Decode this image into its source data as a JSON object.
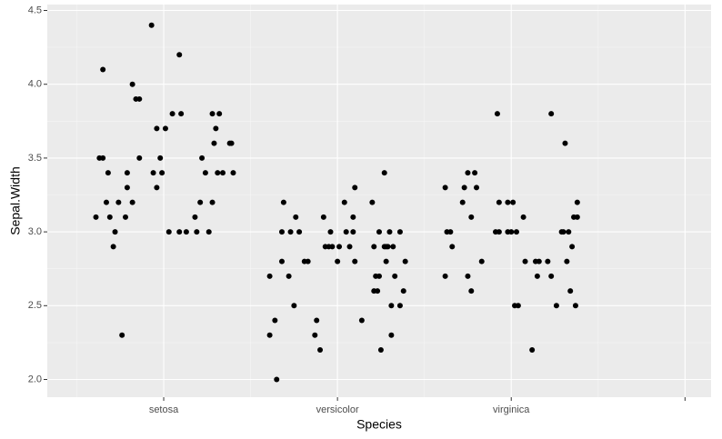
{
  "chart_data": {
    "type": "scatter",
    "x_label": "Species",
    "y_label": "Sepal.Width",
    "xlim": [
      0.33,
      4.15
    ],
    "ylim": [
      1.88,
      4.54
    ],
    "xticks": [
      {
        "value": 1,
        "label": "setosa"
      },
      {
        "value": 2,
        "label": "versicolor"
      },
      {
        "value": 3,
        "label": "virginica"
      },
      {
        "value": 4,
        "label": null
      }
    ],
    "yticks": [
      {
        "value": 2,
        "label": "2.0"
      },
      2.5,
      {
        "value": 3,
        "label": "3.0"
      },
      3.5,
      {
        "value": 4,
        "label": "4.0"
      },
      4.5
    ],
    "grid": true,
    "color": "#000000",
    "x": [
      0.61,
      0.65,
      0.63,
      0.65,
      0.67,
      0.68,
      0.69,
      0.71,
      0.72,
      0.74,
      0.76,
      0.78,
      0.79,
      0.79,
      0.82,
      0.82,
      0.84,
      0.86,
      0.86,
      0.93,
      0.94,
      0.96,
      0.96,
      0.98,
      0.99,
      1.01,
      1.03,
      1.05,
      1.09,
      1.09,
      1.1,
      1.13,
      1.18,
      1.19,
      1.21,
      1.22,
      1.24,
      1.26,
      1.28,
      1.28,
      1.29,
      1.3,
      1.31,
      1.32,
      1.34,
      1.38,
      1.39,
      1.4,
      1.61,
      1.61,
      1.64,
      1.65,
      1.68,
      1.68,
      1.69,
      1.72,
      1.73,
      1.75,
      1.76,
      1.78,
      1.81,
      1.83,
      1.87,
      1.88,
      1.9,
      1.92,
      1.93,
      1.95,
      1.96,
      1.97,
      2.0,
      2.01,
      2.04,
      2.05,
      2.07,
      2.09,
      2.09,
      2.1,
      2.1,
      2.14,
      2.2,
      2.21,
      2.21,
      2.22,
      2.23,
      2.24,
      2.24,
      2.25,
      2.27,
      2.27,
      2.28,
      2.28,
      2.29,
      2.3,
      2.31,
      2.31,
      2.32,
      2.33,
      2.36,
      2.36,
      2.38,
      2.39,
      2.62,
      2.62,
      2.63,
      2.65,
      2.66,
      2.72,
      2.73,
      2.75,
      2.75,
      2.77,
      2.77,
      2.79,
      2.8,
      2.83,
      2.92,
      2.91,
      2.93,
      2.93,
      2.98,
      2.98,
      3.0,
      3.01,
      3.02,
      3.03,
      3.04,
      3.07,
      3.08,
      3.12,
      3.14,
      3.15,
      3.16,
      3.21,
      3.23,
      3.23,
      3.26,
      3.29,
      3.3,
      3.31,
      3.32,
      3.33,
      3.34,
      3.35,
      3.36,
      3.37,
      3.38,
      3.38
    ],
    "y": [
      3.1,
      4.1,
      3.5,
      3.5,
      3.2,
      3.4,
      3.1,
      2.9,
      3.0,
      3.2,
      2.3,
      3.1,
      3.3,
      3.4,
      4.0,
      3.2,
      3.9,
      3.9,
      3.5,
      4.4,
      3.4,
      3.3,
      3.7,
      3.5,
      3.4,
      3.7,
      3.0,
      3.8,
      4.2,
      3.0,
      3.8,
      3.0,
      3.1,
      3.0,
      3.2,
      3.5,
      3.4,
      3.0,
      3.8,
      3.2,
      3.6,
      3.7,
      3.4,
      3.8,
      3.4,
      3.6,
      3.6,
      3.4,
      2.7,
      2.3,
      2.4,
      2.0,
      3.0,
      2.8,
      3.2,
      2.7,
      3.0,
      2.5,
      3.1,
      3.0,
      2.8,
      2.8,
      2.3,
      2.4,
      2.2,
      3.1,
      2.9,
      2.9,
      3.0,
      2.9,
      2.8,
      2.9,
      3.2,
      3.0,
      2.9,
      3.0,
      3.1,
      3.3,
      2.8,
      2.4,
      3.2,
      2.9,
      2.6,
      2.7,
      2.6,
      2.7,
      3.0,
      2.2,
      3.4,
      2.9,
      2.8,
      2.9,
      2.9,
      3.0,
      2.3,
      2.5,
      2.9,
      2.7,
      3.0,
      2.5,
      2.6,
      2.8,
      3.3,
      2.7,
      3.0,
      3.0,
      2.9,
      3.2,
      3.3,
      3.4,
      2.7,
      3.1,
      2.6,
      3.4,
      3.3,
      2.8,
      3.8,
      3.0,
      3.2,
      3.0,
      3.0,
      3.2,
      3.0,
      3.2,
      2.5,
      3.0,
      2.5,
      3.1,
      2.8,
      2.2,
      2.8,
      2.7,
      2.8,
      2.8,
      3.8,
      2.7,
      2.5,
      3.0,
      3.0,
      3.6,
      2.8,
      3.0,
      2.6,
      2.9,
      3.1,
      2.5,
      3.1,
      3.2
    ]
  }
}
